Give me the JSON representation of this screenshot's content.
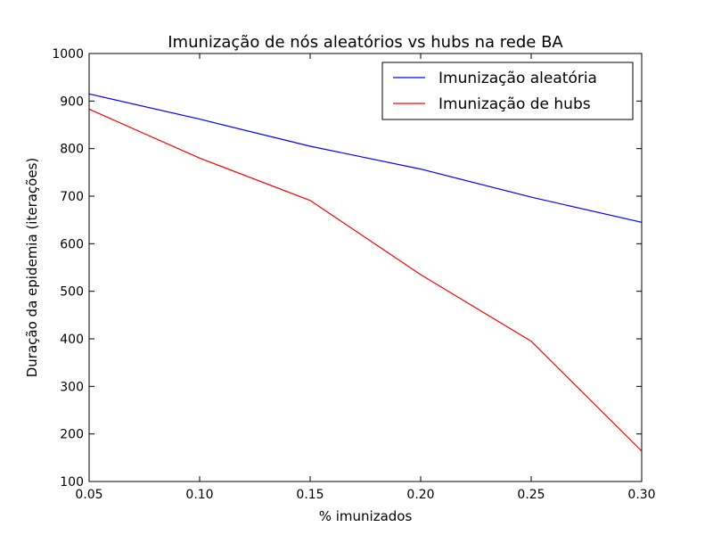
{
  "chart_data": {
    "type": "line",
    "title": "Imunização de nós aleatórios vs hubs na rede BA",
    "xlabel": "% imunizados",
    "ylabel": "Duração da epidemia (iterações)",
    "xlim": [
      0.05,
      0.3
    ],
    "ylim": [
      100,
      1000
    ],
    "xticks": [
      "0.05",
      "0.10",
      "0.15",
      "0.20",
      "0.25",
      "0.30"
    ],
    "yticks": [
      "100",
      "200",
      "300",
      "400",
      "500",
      "600",
      "700",
      "800",
      "900",
      "1000"
    ],
    "grid": false,
    "legend_position": "top-right",
    "x": [
      0.05,
      0.1,
      0.15,
      0.2,
      0.25,
      0.3
    ],
    "series": [
      {
        "name": "Imunização aleatória",
        "color": "#0000ff",
        "values": [
          915,
          862,
          805,
          757,
          698,
          645
        ]
      },
      {
        "name": "Imunização de hubs",
        "color": "#ff0000",
        "values": [
          883,
          780,
          691,
          535,
          395,
          164
        ]
      }
    ]
  }
}
